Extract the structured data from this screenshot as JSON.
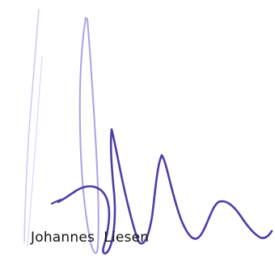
{
  "signature": {
    "printed_name": "Johannes  Liesen",
    "ink_color_faint": "#b9a9e8",
    "ink_color_dark": "#4a3fa8"
  }
}
